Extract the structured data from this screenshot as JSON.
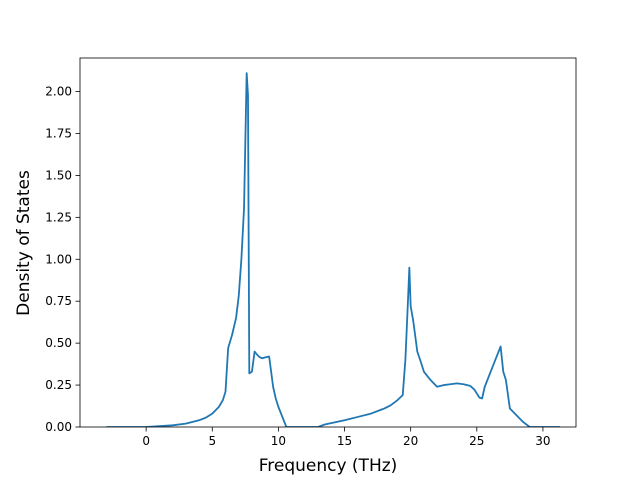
{
  "chart_data": {
    "type": "line",
    "title": "",
    "xlabel": "Frequency (THz)",
    "ylabel": "Density of States",
    "xlim": [
      -5,
      32.5
    ],
    "ylim": [
      0,
      2.2
    ],
    "xticks": [
      0,
      5,
      10,
      15,
      20,
      25,
      30
    ],
    "xtick_labels": [
      "0",
      "5",
      "10",
      "15",
      "20",
      "25",
      "30"
    ],
    "yticks": [
      0,
      0.25,
      0.5,
      0.75,
      1.0,
      1.25,
      1.5,
      1.75,
      2.0
    ],
    "ytick_labels": [
      "0.00",
      "0.25",
      "0.50",
      "0.75",
      "1.00",
      "1.25",
      "1.50",
      "1.75",
      "2.00"
    ],
    "grid": false,
    "legend": "none",
    "series": [
      {
        "color": "#1f77b4",
        "x": [
          -3.0,
          0.0,
          1.0,
          2.0,
          3.0,
          4.0,
          4.5,
          5.0,
          5.5,
          5.8,
          6.0,
          6.2,
          6.5,
          6.8,
          7.0,
          7.2,
          7.4,
          7.5,
          7.6,
          7.7,
          7.8,
          8.0,
          8.2,
          8.4,
          8.6,
          8.8,
          9.0,
          9.3,
          9.6,
          9.8,
          10.0,
          10.3,
          10.6,
          10.8,
          11.0,
          13.0,
          13.5,
          15.0,
          16.0,
          17.0,
          18.0,
          18.5,
          19.0,
          19.4,
          19.6,
          19.8,
          19.9,
          20.0,
          20.2,
          20.5,
          20.8,
          21.0,
          21.5,
          22.0,
          22.5,
          23.0,
          23.5,
          24.0,
          24.5,
          24.8,
          25.0,
          25.2,
          25.4,
          25.6,
          26.0,
          26.5,
          26.8,
          27.0,
          27.2,
          27.5,
          28.0,
          28.5,
          29.0,
          31.3
        ],
        "y": [
          0.0,
          0.0,
          0.005,
          0.01,
          0.02,
          0.04,
          0.055,
          0.08,
          0.12,
          0.16,
          0.21,
          0.47,
          0.55,
          0.65,
          0.78,
          1.0,
          1.3,
          1.7,
          2.11,
          1.98,
          0.32,
          0.33,
          0.45,
          0.43,
          0.415,
          0.41,
          0.415,
          0.42,
          0.24,
          0.17,
          0.12,
          0.06,
          0.0,
          0.0,
          0.0,
          0.0,
          0.015,
          0.04,
          0.06,
          0.08,
          0.11,
          0.13,
          0.16,
          0.19,
          0.4,
          0.76,
          0.95,
          0.72,
          0.63,
          0.45,
          0.38,
          0.33,
          0.28,
          0.24,
          0.25,
          0.255,
          0.26,
          0.255,
          0.245,
          0.225,
          0.2,
          0.175,
          0.17,
          0.24,
          0.32,
          0.42,
          0.48,
          0.33,
          0.28,
          0.11,
          0.07,
          0.03,
          0.0,
          0.0
        ]
      }
    ]
  }
}
